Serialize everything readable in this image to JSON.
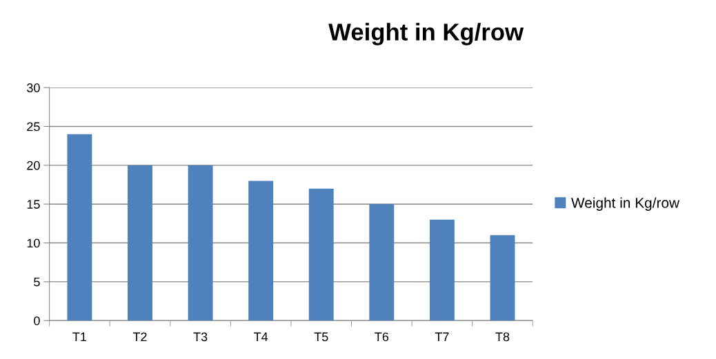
{
  "chart_data": {
    "type": "bar",
    "title": "Weight in Kg/row",
    "categories": [
      "T1",
      "T2",
      "T3",
      "T4",
      "T5",
      "T6",
      "T7",
      "T8"
    ],
    "series": [
      {
        "name": "Weight in Kg/row",
        "color": "#4f81bd",
        "values": [
          24,
          20,
          20,
          18,
          17,
          15,
          13,
          11
        ]
      }
    ],
    "ylim": [
      0,
      30
    ],
    "yticks": [
      0,
      5,
      10,
      15,
      20,
      25,
      30
    ],
    "grid": "y",
    "legend": "right"
  }
}
